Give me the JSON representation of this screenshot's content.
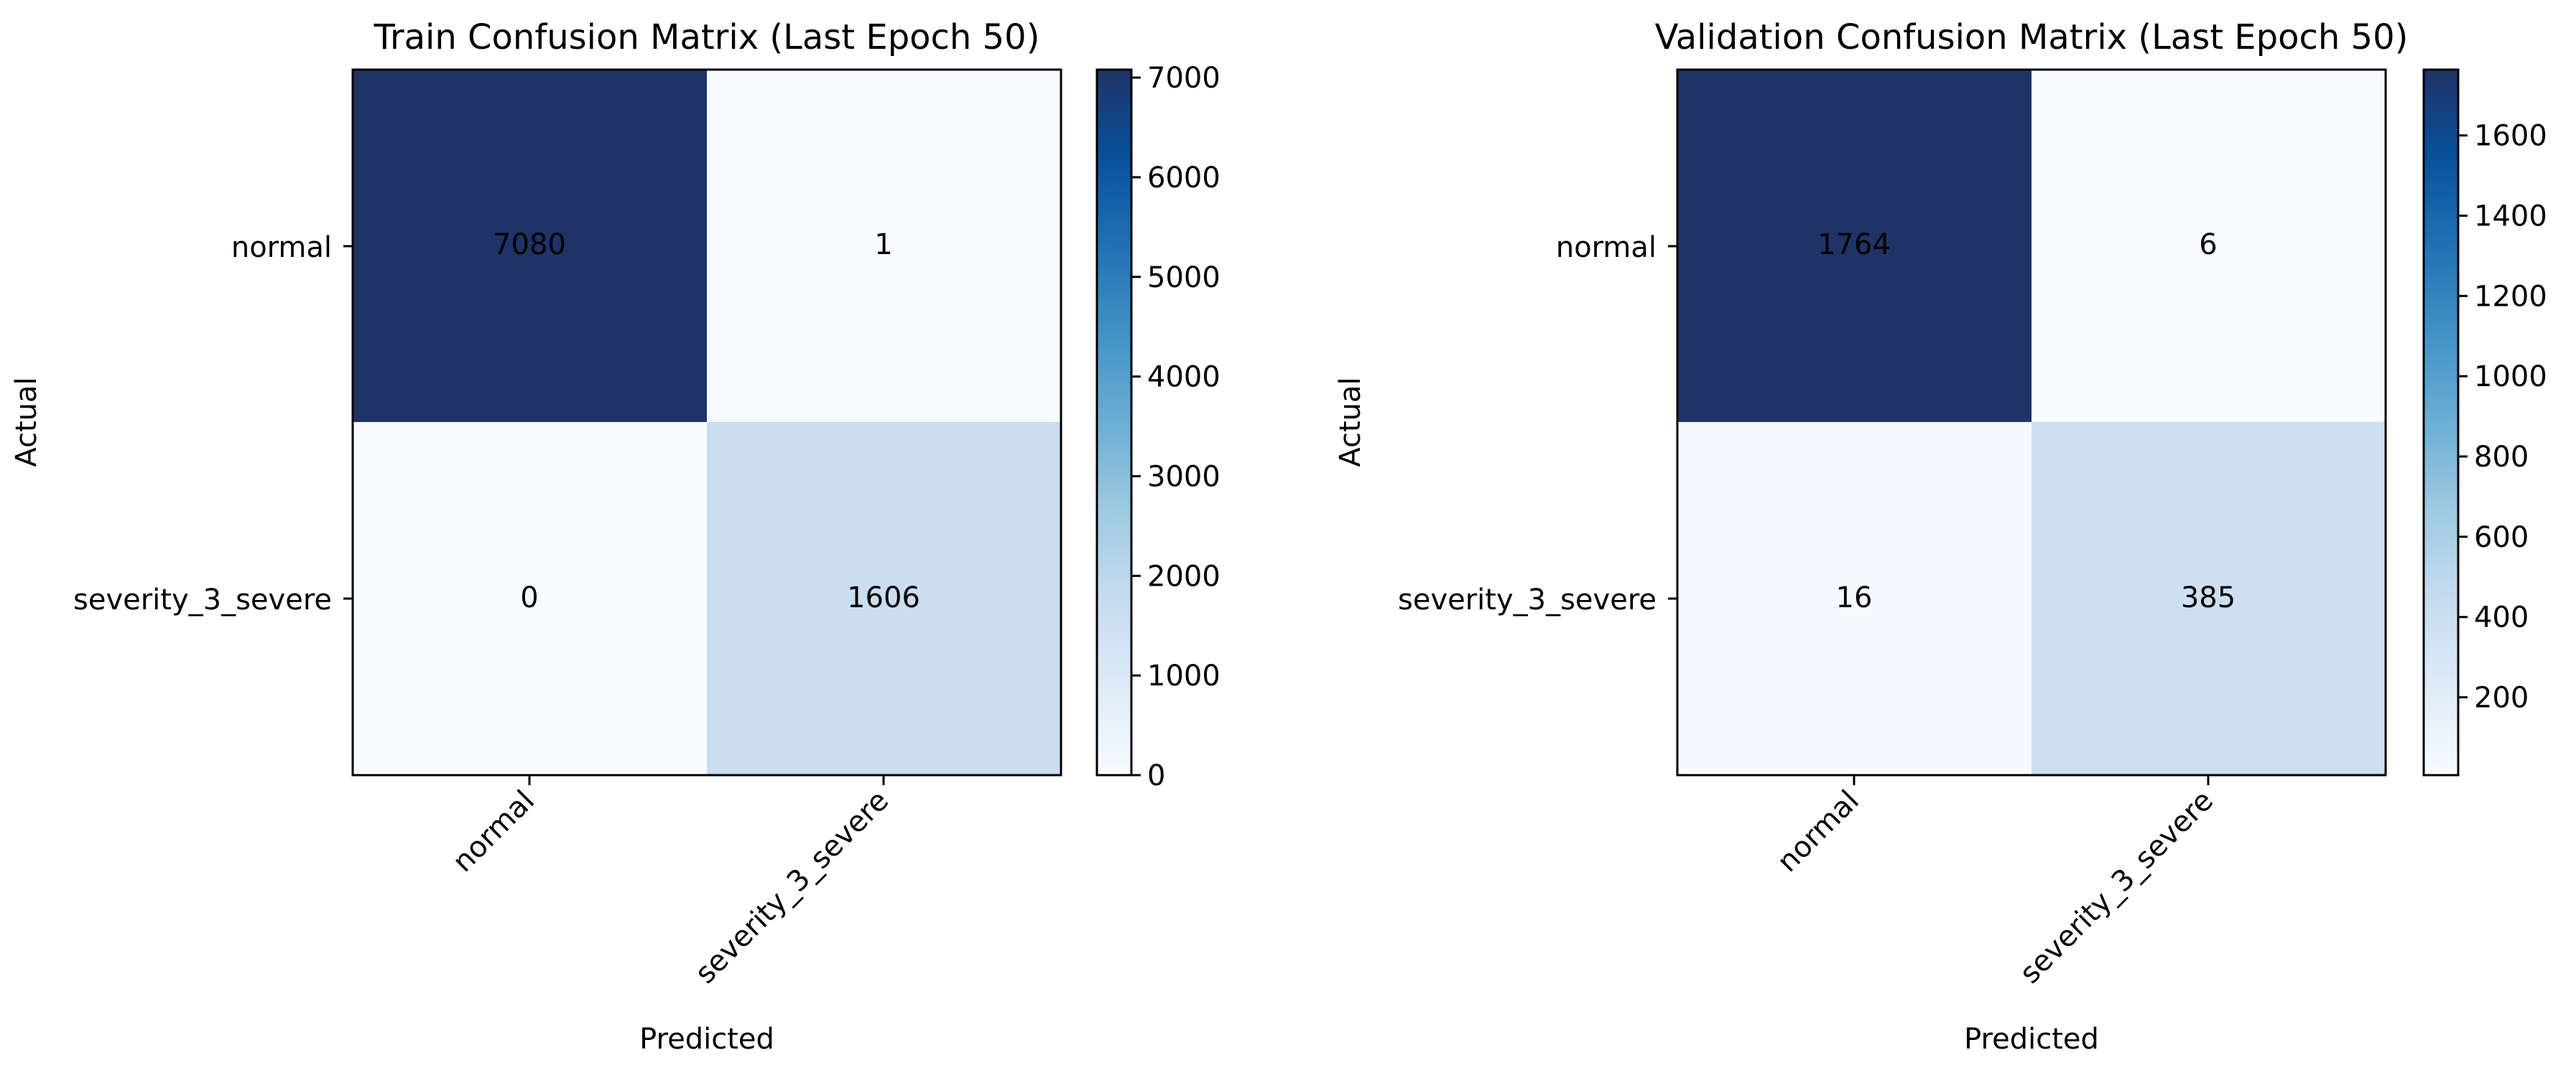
{
  "chart_data": [
    {
      "type": "heatmap",
      "title": "Train Confusion Matrix (Last Epoch 50)",
      "xlabel": "Predicted",
      "ylabel": "Actual",
      "x_categories": [
        "normal",
        "severity_3_severe"
      ],
      "y_categories": [
        "normal",
        "severity_3_severe"
      ],
      "values": [
        [
          7080,
          1
        ],
        [
          0,
          1606
        ]
      ],
      "cell_labels": [
        [
          "7080",
          "1"
        ],
        [
          "0",
          "1606"
        ]
      ],
      "colormap": "Blues",
      "colorbar": {
        "vmin": 0,
        "vmax": 7080,
        "ticks": [
          0,
          1000,
          2000,
          3000,
          4000,
          5000,
          6000,
          7000
        ],
        "tick_labels": [
          "0",
          "1000",
          "2000",
          "3000",
          "4000",
          "5000",
          "6000",
          "7000"
        ]
      }
    },
    {
      "type": "heatmap",
      "title": "Validation Confusion Matrix (Last Epoch 50)",
      "xlabel": "Predicted",
      "ylabel": "Actual",
      "x_categories": [
        "normal",
        "severity_3_severe"
      ],
      "y_categories": [
        "normal",
        "severity_3_severe"
      ],
      "values": [
        [
          1764,
          6
        ],
        [
          16,
          385
        ]
      ],
      "cell_labels": [
        [
          "1764",
          "6"
        ],
        [
          "16",
          "385"
        ]
      ],
      "colormap": "Blues",
      "colorbar": {
        "vmin": 6,
        "vmax": 1764,
        "ticks": [
          200,
          400,
          600,
          800,
          1000,
          1200,
          1400,
          1600
        ],
        "tick_labels": [
          "200",
          "400",
          "600",
          "800",
          "1000",
          "1200",
          "1400",
          "1600"
        ]
      }
    }
  ]
}
